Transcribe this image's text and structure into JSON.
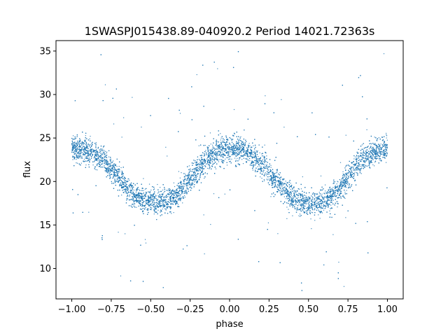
{
  "chart_data": {
    "type": "scatter",
    "title": "1SWASPJ015438.89-040920.2 Period 14021.72363s",
    "xlabel": "phase",
    "ylabel": "flux",
    "xlim": [
      -1.1,
      1.1
    ],
    "ylim": [
      6.5,
      36.2
    ],
    "xticks": [
      -1.0,
      -0.75,
      -0.5,
      -0.25,
      0.0,
      0.25,
      0.5,
      0.75,
      1.0
    ],
    "xtick_labels": [
      "−1.00",
      "−0.75",
      "−0.50",
      "−0.25",
      "0.00",
      "0.25",
      "0.50",
      "0.75",
      "1.00"
    ],
    "yticks": [
      10,
      15,
      20,
      25,
      30,
      35
    ],
    "ytick_labels": [
      "10",
      "15",
      "20",
      "25",
      "30",
      "35"
    ],
    "grid": false,
    "marker_color": "#1f77b4",
    "series": [
      {
        "phase": [
          -1.0,
          -0.9,
          -0.8,
          -0.7,
          -0.6,
          -0.5,
          -0.4,
          -0.3,
          -0.2,
          -0.1,
          0.0,
          0.1,
          0.2,
          0.3,
          0.4,
          0.5,
          0.6,
          0.7,
          0.8,
          0.9,
          1.0
        ],
        "flux": [
          23.8,
          23.5,
          22.5,
          20.5,
          18.3,
          17.6,
          17.6,
          19.0,
          21.5,
          23.2,
          23.8,
          23.4,
          22.0,
          20.0,
          18.0,
          17.5,
          17.6,
          19.2,
          21.8,
          23.2,
          23.8
        ]
      }
    ]
  }
}
